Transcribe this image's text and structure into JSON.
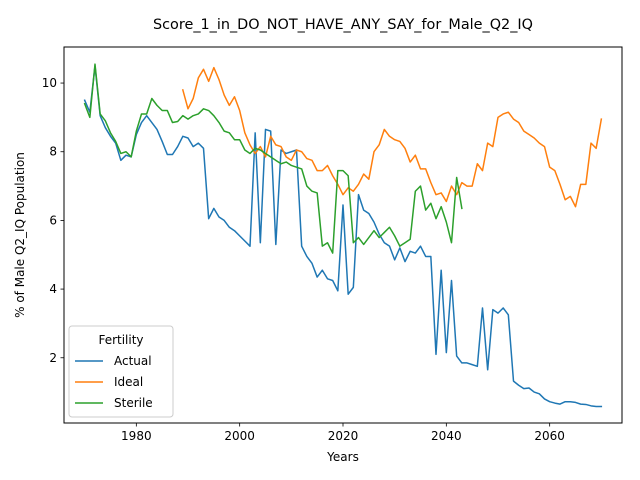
{
  "chart_data": {
    "type": "line",
    "title": "Score_1_in_DO_NOT_HAVE_ANY_SAY_for_Male_Q2_IQ",
    "xlabel": "Years",
    "ylabel": "% of Male Q2_IQ Population",
    "xlim": [
      1966,
      2074
    ],
    "ylim": [
      0.1,
      11.05
    ],
    "xticks": [
      1980,
      2000,
      2020,
      2040,
      2060
    ],
    "yticks": [
      2,
      4,
      6,
      8,
      10
    ],
    "grid": false,
    "legend": {
      "title": "Fertility",
      "placement": "lower-left"
    },
    "series": [
      {
        "name": "Actual",
        "color": "#1f77b4",
        "x": [
          1970,
          1971,
          1972,
          1973,
          1974,
          1975,
          1976,
          1977,
          1978,
          1979,
          1980,
          1981,
          1982,
          1983,
          1984,
          1985,
          1986,
          1987,
          1988,
          1989,
          1990,
          1991,
          1992,
          1993,
          1994,
          1995,
          1996,
          1997,
          1998,
          1999,
          2000,
          2001,
          2002,
          2003,
          2004,
          2005,
          2006,
          2007,
          2008,
          2009,
          2010,
          2011,
          2012,
          2013,
          2014,
          2015,
          2016,
          2017,
          2018,
          2019,
          2020,
          2021,
          2022,
          2023,
          2024,
          2025,
          2026,
          2027,
          2028,
          2029,
          2030,
          2031,
          2032,
          2033,
          2034,
          2035,
          2036,
          2037,
          2038,
          2039,
          2040,
          2041,
          2042,
          2043,
          2044,
          2045,
          2046,
          2047,
          2048,
          2049,
          2050,
          2051,
          2052,
          2053,
          2054,
          2055,
          2056,
          2057,
          2058,
          2059,
          2060,
          2061,
          2062,
          2063,
          2064,
          2065,
          2066,
          2067,
          2068,
          2069,
          2070
        ],
        "values": [
          9.5,
          9.15,
          10.5,
          9.05,
          8.7,
          8.45,
          8.25,
          7.75,
          7.9,
          7.85,
          8.5,
          8.85,
          9.05,
          8.85,
          8.65,
          8.3,
          7.92,
          7.92,
          8.15,
          8.45,
          8.4,
          8.15,
          8.25,
          8.1,
          6.05,
          6.35,
          6.1,
          6.0,
          5.8,
          5.7,
          5.55,
          5.4,
          5.25,
          8.55,
          5.35,
          8.65,
          8.6,
          5.3,
          8.05,
          7.95,
          8.0,
          8.05,
          5.25,
          4.95,
          4.75,
          4.35,
          4.55,
          4.3,
          4.25,
          3.95,
          6.45,
          3.85,
          4.05,
          6.75,
          6.3,
          6.2,
          5.95,
          5.6,
          5.35,
          5.25,
          4.85,
          5.2,
          4.8,
          5.1,
          5.05,
          5.25,
          4.95,
          4.95,
          2.1,
          4.55,
          2.15,
          4.25,
          2.05,
          1.85,
          1.85,
          1.8,
          1.75,
          3.45,
          1.65,
          3.4,
          3.3,
          3.45,
          3.25,
          1.32,
          1.2,
          1.1,
          1.12,
          1.0,
          0.95,
          0.8,
          0.72,
          0.68,
          0.65,
          0.72,
          0.72,
          0.7,
          0.65,
          0.64,
          0.6,
          0.58,
          0.58
        ]
      },
      {
        "name": "Ideal",
        "color": "#ff7f0e",
        "x": [
          1989,
          1990,
          1991,
          1992,
          1993,
          1994,
          1995,
          1996,
          1997,
          1998,
          1999,
          2000,
          2001,
          2002,
          2003,
          2004,
          2005,
          2006,
          2007,
          2008,
          2009,
          2010,
          2011,
          2012,
          2013,
          2014,
          2015,
          2016,
          2017,
          2018,
          2019,
          2020,
          2021,
          2022,
          2023,
          2024,
          2025,
          2026,
          2027,
          2028,
          2029,
          2030,
          2031,
          2032,
          2033,
          2034,
          2035,
          2036,
          2037,
          2038,
          2039,
          2040,
          2041,
          2042,
          2043,
          2044,
          2045,
          2046,
          2047,
          2048,
          2049,
          2050,
          2051,
          2052,
          2053,
          2054,
          2055,
          2056,
          2057,
          2058,
          2059,
          2060,
          2061,
          2062,
          2063,
          2064,
          2065,
          2066,
          2067,
          2068,
          2069,
          2070
        ],
        "values": [
          9.8,
          9.25,
          9.55,
          10.15,
          10.4,
          10.05,
          10.45,
          10.1,
          9.65,
          9.35,
          9.6,
          9.2,
          8.55,
          8.2,
          7.95,
          8.15,
          7.85,
          8.45,
          8.2,
          8.15,
          7.85,
          7.75,
          8.05,
          8.0,
          7.8,
          7.75,
          7.45,
          7.45,
          7.6,
          7.3,
          7.05,
          6.75,
          6.95,
          6.85,
          7.05,
          7.35,
          7.2,
          8.0,
          8.2,
          8.65,
          8.45,
          8.35,
          8.3,
          8.1,
          7.7,
          7.9,
          7.5,
          7.5,
          7.1,
          6.75,
          6.8,
          6.55,
          7.0,
          6.75,
          7.1,
          7.0,
          7.0,
          7.65,
          7.45,
          8.25,
          8.15,
          9.0,
          9.1,
          9.15,
          8.95,
          8.85,
          8.6,
          8.5,
          8.4,
          8.25,
          8.15,
          7.55,
          7.45,
          7.05,
          6.6,
          6.7,
          6.4,
          7.05,
          7.05,
          8.25,
          8.1,
          8.95
        ]
      },
      {
        "name": "Sterile",
        "color": "#2ca02c",
        "x": [
          1970,
          1971,
          1972,
          1973,
          1974,
          1975,
          1976,
          1977,
          1978,
          1979,
          1980,
          1981,
          1982,
          1983,
          1984,
          1985,
          1986,
          1987,
          1988,
          1989,
          1990,
          1991,
          1992,
          1993,
          1994,
          1995,
          1996,
          1997,
          1998,
          1999,
          2000,
          2001,
          2002,
          2003,
          2004,
          2005,
          2006,
          2007,
          2008,
          2009,
          2010,
          2011,
          2012,
          2013,
          2014,
          2015,
          2016,
          2017,
          2018,
          2019,
          2020,
          2021,
          2022,
          2023,
          2024,
          2025,
          2026,
          2027,
          2028,
          2029,
          2030,
          2031,
          2032,
          2033,
          2034,
          2035,
          2036,
          2037,
          2038,
          2039,
          2040,
          2041,
          2042,
          2043
        ],
        "values": [
          9.4,
          9.0,
          10.55,
          9.1,
          8.9,
          8.55,
          8.3,
          7.95,
          8.0,
          7.85,
          8.6,
          9.1,
          9.1,
          9.55,
          9.35,
          9.2,
          9.2,
          8.85,
          8.88,
          9.05,
          8.95,
          9.05,
          9.1,
          9.25,
          9.2,
          9.05,
          8.85,
          8.6,
          8.55,
          8.35,
          8.35,
          8.05,
          7.95,
          8.1,
          8.05,
          7.95,
          7.85,
          7.75,
          7.65,
          7.7,
          7.6,
          7.55,
          7.5,
          7.0,
          6.85,
          6.8,
          5.25,
          5.35,
          5.05,
          7.45,
          7.45,
          7.3,
          5.35,
          5.5,
          5.3,
          5.5,
          5.7,
          5.5,
          5.65,
          5.8,
          5.55,
          5.25,
          5.35,
          5.45,
          6.85,
          7.0,
          6.3,
          6.5,
          6.05,
          6.4,
          5.95,
          5.35,
          7.25,
          6.35
        ]
      }
    ]
  }
}
